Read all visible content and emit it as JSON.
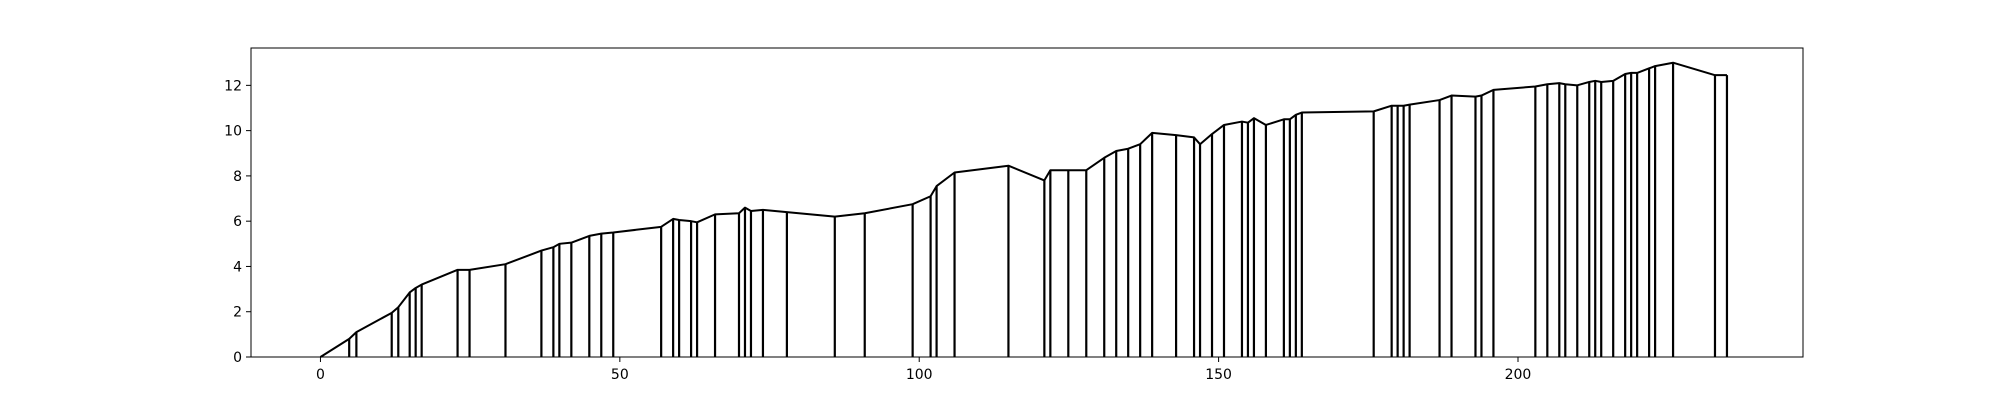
{
  "chart_data": {
    "type": "line",
    "title": "",
    "xlabel": "",
    "ylabel": "",
    "xlim": [
      -11.6,
      247.6
    ],
    "ylim": [
      0,
      13.65
    ],
    "xticks": [
      0,
      50,
      100,
      150,
      200
    ],
    "yticks": [
      0,
      2,
      4,
      6,
      8,
      10,
      12
    ],
    "grid": false,
    "legend": "none",
    "line_color": "#000000",
    "series": [
      {
        "x": [
          0,
          4.8,
          6,
          11.9,
          13,
          14.9,
          15.9,
          16.9,
          22.9,
          24.9,
          30.9,
          36.9,
          38.9,
          39.9,
          41.9,
          44.9,
          46.9,
          48.9,
          56.9,
          58.9,
          59.9,
          61.9,
          62.9,
          65.9,
          69.9,
          70.9,
          71.9,
          73.9,
          77.9,
          85.9,
          90.9,
          98.9,
          101.9,
          102.9,
          105.9,
          114.9,
          120.9,
          121.9,
          124.9,
          127.9,
          130.9,
          132.9,
          134.9,
          136.9,
          138.9,
          142.9,
          145.9,
          146.9,
          148.9,
          150.9,
          153.9,
          154.9,
          155.9,
          157.9,
          160.9,
          161.9,
          162.9,
          163.9,
          175.9,
          178.9,
          179.9,
          180.9,
          181.9,
          186.9,
          188.9,
          192.9,
          193.9,
          195.9,
          202.9,
          204.9,
          206.9,
          207.9,
          209.9,
          211.9,
          212.9,
          213.9,
          215.9,
          217.9,
          218.9,
          219.9,
          221.9,
          222.9,
          225.9,
          232.9,
          234.9
        ],
        "y": [
          0,
          0.8,
          1.1,
          1.95,
          2.2,
          2.85,
          3.05,
          3.2,
          3.85,
          3.85,
          4.1,
          4.7,
          4.85,
          5.0,
          5.05,
          5.35,
          5.45,
          5.5,
          5.75,
          6.1,
          6.05,
          6.0,
          5.95,
          6.3,
          6.35,
          6.6,
          6.45,
          6.5,
          6.4,
          6.2,
          6.35,
          6.75,
          7.1,
          7.55,
          8.15,
          8.45,
          7.8,
          8.25,
          8.25,
          8.25,
          8.8,
          9.1,
          9.2,
          9.4,
          9.9,
          9.8,
          9.7,
          9.4,
          9.85,
          10.25,
          10.4,
          10.35,
          10.55,
          10.25,
          10.5,
          10.5,
          10.7,
          10.8,
          10.85,
          11.1,
          11.1,
          11.1,
          11.15,
          11.35,
          11.55,
          11.5,
          11.55,
          11.8,
          11.95,
          12.05,
          12.1,
          12.05,
          12.0,
          12.15,
          12.2,
          12.15,
          12.2,
          12.5,
          12.55,
          12.55,
          12.75,
          12.85,
          13.0,
          12.45,
          12.45
        ]
      }
    ]
  }
}
